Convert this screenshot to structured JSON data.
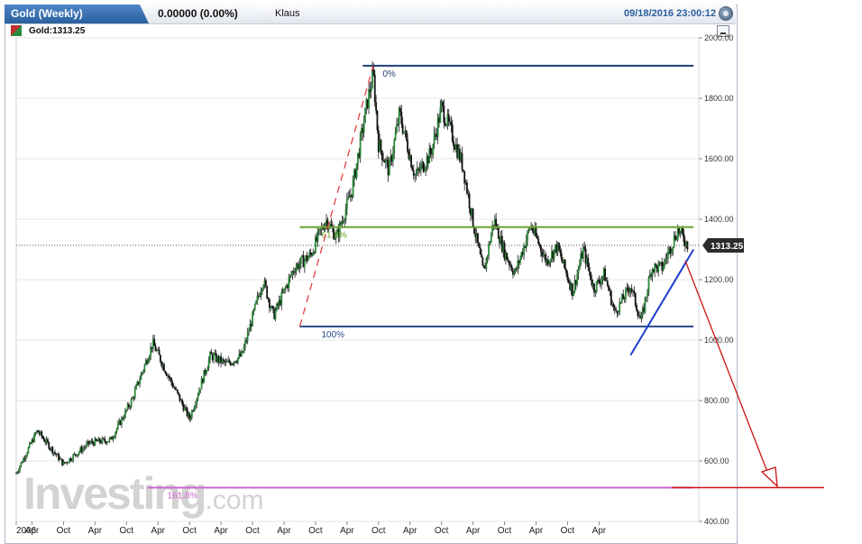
{
  "header": {
    "title": "Gold (Weekly)",
    "price_change": "0.00000 (0.00%)",
    "user": "Klaus",
    "datetime": "09/18/2016 23:00:12"
  },
  "legend": {
    "label": "Gold:1313.25"
  },
  "watermark": {
    "brand": "Investing",
    "suffix": ".com"
  },
  "chart_data": {
    "type": "candlestick",
    "instrument": "Gold",
    "timeframe": "Weekly",
    "current_price": 1313.25,
    "current_price_label": "1313.25",
    "y_ticks": [
      "2000.00",
      "1800.00",
      "1600.00",
      "1400.00",
      "1200.00",
      "1000.00",
      "800.00",
      "600.00",
      "400.00"
    ],
    "y_tick_values": [
      2000,
      1800,
      1600,
      1400,
      1200,
      1000,
      800,
      600,
      400
    ],
    "ylim": [
      400,
      2000
    ],
    "x_ticks": [
      "2006",
      "Apr",
      "Oct",
      "Apr",
      "Oct",
      "Apr",
      "Oct",
      "Apr",
      "Oct",
      "Apr",
      "Oct",
      "Apr",
      "Oct",
      "Apr",
      "Oct",
      "Apr",
      "Oct",
      "Apr",
      "Oct",
      "Apr"
    ],
    "xlim": [
      "2006-01",
      "2016-11"
    ],
    "close_anchors": [
      [
        "2006-01",
        560
      ],
      [
        "2006-05",
        700
      ],
      [
        "2006-10",
        590
      ],
      [
        "2007-03",
        660
      ],
      [
        "2007-07",
        670
      ],
      [
        "2007-11",
        800
      ],
      [
        "2008-03",
        990
      ],
      [
        "2008-06",
        880
      ],
      [
        "2008-10",
        740
      ],
      [
        "2009-02",
        950
      ],
      [
        "2009-05",
        920
      ],
      [
        "2009-08",
        950
      ],
      [
        "2009-12",
        1200
      ],
      [
        "2010-02",
        1080
      ],
      [
        "2010-06",
        1240
      ],
      [
        "2010-09",
        1280
      ],
      [
        "2010-12",
        1400
      ],
      [
        "2011-02",
        1340
      ],
      [
        "2011-05",
        1500
      ],
      [
        "2011-08",
        1800
      ],
      [
        "2011-09",
        1880
      ],
      [
        "2011-10",
        1650
      ],
      [
        "2011-12",
        1560
      ],
      [
        "2012-02",
        1750
      ],
      [
        "2012-05",
        1540
      ],
      [
        "2012-08",
        1620
      ],
      [
        "2012-10",
        1770
      ],
      [
        "2012-12",
        1680
      ],
      [
        "2013-02",
        1580
      ],
      [
        "2013-04",
        1390
      ],
      [
        "2013-06",
        1220
      ],
      [
        "2013-08",
        1400
      ],
      [
        "2013-10",
        1290
      ],
      [
        "2013-12",
        1220
      ],
      [
        "2014-03",
        1380
      ],
      [
        "2014-06",
        1260
      ],
      [
        "2014-08",
        1310
      ],
      [
        "2014-11",
        1160
      ],
      [
        "2015-01",
        1300
      ],
      [
        "2015-03",
        1170
      ],
      [
        "2015-05",
        1220
      ],
      [
        "2015-07",
        1090
      ],
      [
        "2015-10",
        1180
      ],
      [
        "2015-12",
        1060
      ],
      [
        "2016-02",
        1240
      ],
      [
        "2016-04",
        1240
      ],
      [
        "2016-07",
        1365
      ],
      [
        "2016-09",
        1313
      ]
    ],
    "annotations": {
      "fib_levels": [
        {
          "label": "0%",
          "value": 1908,
          "color": "#1f3b73"
        },
        {
          "label": "61.8%",
          "value": 1374,
          "color": "#6aa532"
        },
        {
          "label": "100%",
          "value": 1045,
          "color": "#2a4a8a"
        },
        {
          "label": "161.8%",
          "value": 512,
          "color": "#cc66cc"
        }
      ],
      "fib_swing_line": {
        "from": [
          "2010-07",
          1045
        ],
        "to": [
          "2011-09",
          1908
        ],
        "color": "#e03030",
        "style": "dashed"
      },
      "support_trendline": {
        "from": [
          "2015-10",
          950
        ],
        "to": [
          "2016-10",
          1300
        ],
        "color": "#1f3fcf"
      },
      "projection_arrow": {
        "color": "#cc1111",
        "target_level": 512
      }
    }
  }
}
